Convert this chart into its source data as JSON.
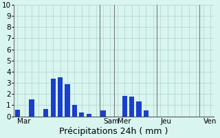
{
  "title": "",
  "xlabel": "Précipitations 24h ( mm )",
  "ylabel": "",
  "background_color": "#d8f5f0",
  "bar_color": "#1a3fcc",
  "grid_color": "#b8d8d0",
  "ylim": [
    0,
    10
  ],
  "yticks": [
    0,
    1,
    2,
    3,
    4,
    5,
    6,
    7,
    8,
    9,
    10
  ],
  "bar_values": [
    0.6,
    0.0,
    1.5,
    0.0,
    0.65,
    3.4,
    3.5,
    2.9,
    1.05,
    0.35,
    0.2,
    0.0,
    0.55,
    0.0,
    0.0,
    1.85,
    1.75,
    1.35,
    0.55,
    0.0,
    0.0,
    0.0,
    0.0,
    0.0,
    0.0,
    0.0,
    0.0,
    0.0
  ],
  "day_labels": [
    "Mar",
    "Sam",
    "Mer",
    "Jeu",
    "Ven"
  ],
  "day_tick_positions": [
    0,
    12,
    14,
    20,
    26
  ],
  "day_vline_positions": [
    0,
    12,
    14,
    20,
    26
  ],
  "xlabel_fontsize": 9,
  "tick_fontsize": 7.5,
  "num_bars": 28
}
